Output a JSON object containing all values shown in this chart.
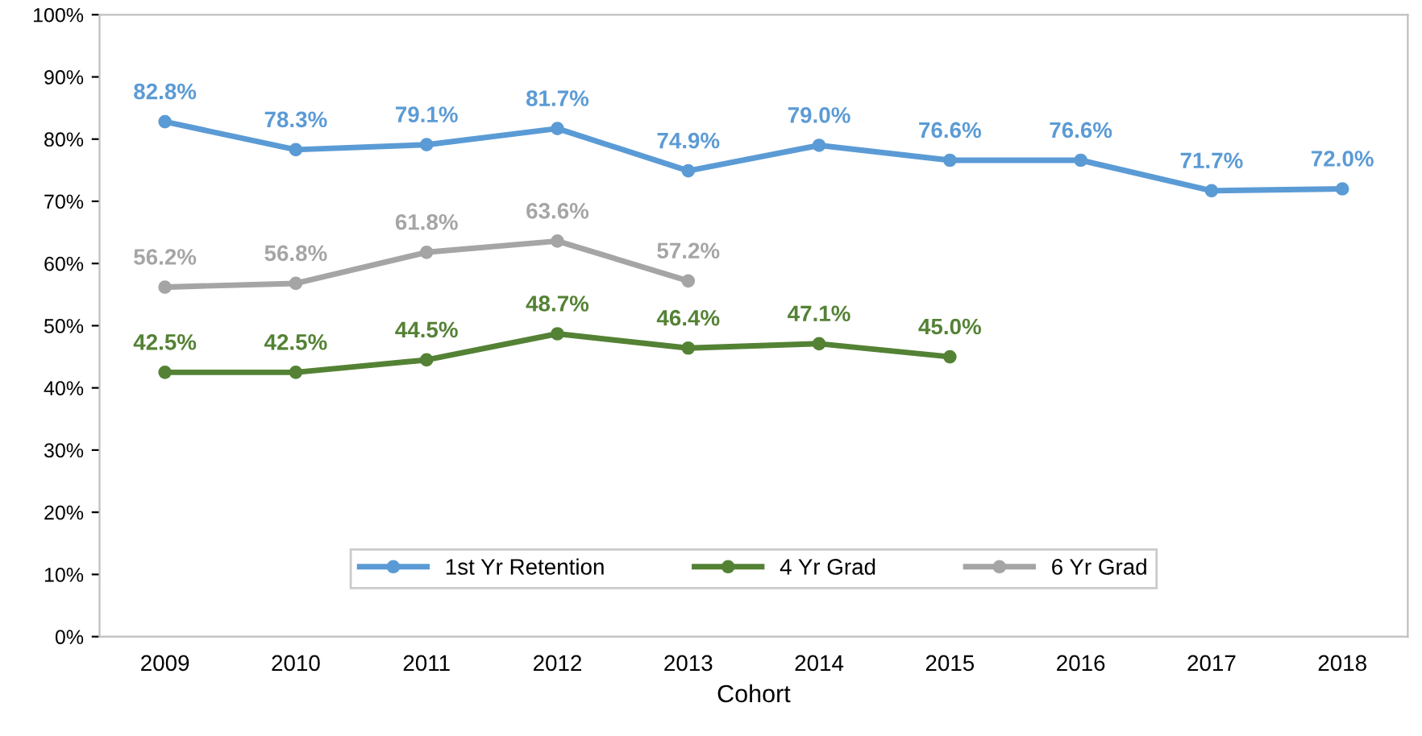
{
  "chart_data": {
    "type": "line",
    "xlabel": "Cohort",
    "categories": [
      "2009",
      "2010",
      "2011",
      "2012",
      "2013",
      "2014",
      "2015",
      "2016",
      "2017",
      "2018"
    ],
    "series": [
      {
        "name": "1st Yr Retention",
        "color": "#5b9bd5",
        "values": [
          82.8,
          78.3,
          79.1,
          81.7,
          74.9,
          79.0,
          76.6,
          76.6,
          71.7,
          72.0
        ],
        "value_labels": [
          "82.8%",
          "78.3%",
          "79.1%",
          "81.7%",
          "74.9%",
          "79.0%",
          "76.6%",
          "76.6%",
          "71.7%",
          "72.0%"
        ]
      },
      {
        "name": "4 Yr Grad",
        "color": "#548235",
        "values": [
          42.5,
          42.5,
          44.5,
          48.7,
          46.4,
          47.1,
          45.0,
          null,
          null,
          null
        ],
        "value_labels": [
          "42.5%",
          "42.5%",
          "44.5%",
          "48.7%",
          "46.4%",
          "47.1%",
          "45.0%",
          null,
          null,
          null
        ]
      },
      {
        "name": "6 Yr Grad",
        "color": "#a5a5a5",
        "values": [
          56.2,
          56.8,
          61.8,
          63.6,
          57.2,
          null,
          null,
          null,
          null,
          null
        ],
        "value_labels": [
          "56.2%",
          "56.8%",
          "61.8%",
          "63.6%",
          "57.2%",
          null,
          null,
          null,
          null,
          null
        ]
      }
    ],
    "ylim": [
      0,
      100
    ],
    "yticks": [
      {
        "value": 0,
        "label": "0%"
      },
      {
        "value": 10,
        "label": "10%"
      },
      {
        "value": 20,
        "label": "20%"
      },
      {
        "value": 30,
        "label": "30%"
      },
      {
        "value": 40,
        "label": "40%"
      },
      {
        "value": 50,
        "label": "50%"
      },
      {
        "value": 60,
        "label": "60%"
      },
      {
        "value": 70,
        "label": "70%"
      },
      {
        "value": 80,
        "label": "80%"
      },
      {
        "value": 90,
        "label": "90%"
      },
      {
        "value": 100,
        "label": "100%"
      }
    ],
    "marker": "circle",
    "line_style": "solid",
    "grid": false,
    "legend": "bottom"
  }
}
